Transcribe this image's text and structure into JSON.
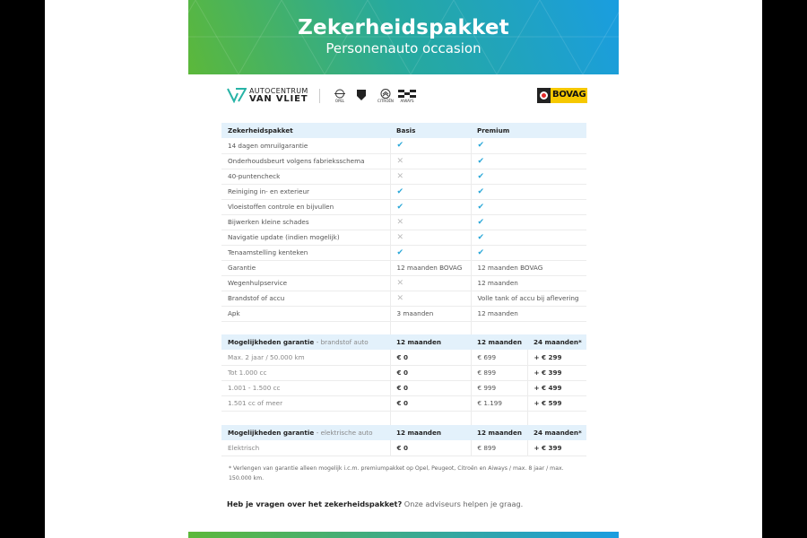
{
  "header": {
    "title": "Zekerheidspakket",
    "subtitle": "Personenauto occasion",
    "gradient": [
      "#5cb83a",
      "#1a9de0"
    ]
  },
  "logos": {
    "dealer_line1": "AUTOCENTRUM",
    "dealer_line2": "VAN VLIET",
    "brands": [
      "OPEL",
      "PEUGEOT",
      "CITROËN",
      "AIWAYS"
    ],
    "bovag": "BOVAG"
  },
  "package_table": {
    "headers": [
      "Zekerheidspakket",
      "Basis",
      "Premium"
    ],
    "rows": [
      [
        "14 dagen omruilgarantie",
        "check",
        "check"
      ],
      [
        "Onderhoudsbeurt volgens fabrieksschema",
        "cross",
        "check"
      ],
      [
        "40-puntencheck",
        "cross",
        "check"
      ],
      [
        "Reiniging in- en exterieur",
        "check",
        "check"
      ],
      [
        "Vloeistoffen controle en bijvullen",
        "check",
        "check"
      ],
      [
        "Bijwerken kleine schades",
        "cross",
        "check"
      ],
      [
        "Navigatie update (indien mogelijk)",
        "cross",
        "check"
      ],
      [
        "Tenaamstelling kenteken",
        "check",
        "check"
      ],
      [
        "Garantie",
        "12 maanden BOVAG",
        "12 maanden BOVAG"
      ],
      [
        "Wegenhulpservice",
        "cross",
        "12 maanden"
      ],
      [
        "Brandstof of accu",
        "cross",
        "Volle tank of accu bij aflevering"
      ],
      [
        "Apk",
        "3 maanden",
        "12 maanden"
      ]
    ]
  },
  "fuel_table": {
    "title": "Mogelijkheden garantie",
    "subtitle": "- brandstof auto",
    "headers": [
      "12 maanden",
      "12 maanden",
      "24 maanden*"
    ],
    "rows": [
      [
        "Max. 2 jaar / 50.000 km",
        "€ 0",
        "€ 699",
        "+ € 299"
      ],
      [
        "Tot 1.000 cc",
        "€ 0",
        "€ 899",
        "+ € 399"
      ],
      [
        "1.001 - 1.500 cc",
        "€ 0",
        "€ 999",
        "+ € 499"
      ],
      [
        "1.501 cc of meer",
        "€ 0",
        "€ 1.199",
        "+ € 599"
      ]
    ]
  },
  "electric_table": {
    "title": "Mogelijkheden garantie",
    "subtitle": "- elektrische auto",
    "headers": [
      "12 maanden",
      "12 maanden",
      "24 maanden*"
    ],
    "rows": [
      [
        "Elektrisch",
        "€ 0",
        "€ 899",
        "+ € 399"
      ]
    ]
  },
  "footnote": "* Verlengen van garantie alleen mogelijk i.c.m. premiumpakket op Opel, Peugeot, Citroën en Aiways / max. 8 jaar / max. 150.000 km.",
  "question": {
    "bold": "Heb je vragen over het zekerheidspakket?",
    "rest": " Onze adviseurs helpen je graag."
  },
  "icons": {
    "check": "✔",
    "cross": "✕"
  }
}
